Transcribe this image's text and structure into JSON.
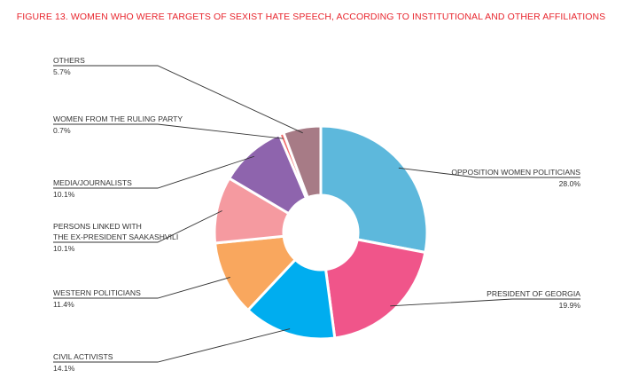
{
  "chart_data": {
    "type": "pie",
    "title": "FIGURE 13. WOMEN WHO WERE TARGETS OF SEXIST HATE SPEECH, ACCORDING TO INSTITUTIONAL AND OTHER AFFILIATIONS",
    "donut": true,
    "slices": [
      {
        "label": "OPPOSITION WOMEN POLITICIANS",
        "value": 28.0,
        "value_label": "28.0%",
        "color": "#5db8dc"
      },
      {
        "label": "PRESIDENT OF GEORGIA",
        "value": 19.9,
        "value_label": "19.9%",
        "color": "#f0558a"
      },
      {
        "label": "CIVIL ACTIVISTS",
        "value": 14.1,
        "value_label": "14.1%",
        "color": "#00adef"
      },
      {
        "label": "WESTERN POLITICIANS",
        "value": 11.4,
        "value_label": "11.4%",
        "color": "#f9a75e"
      },
      {
        "label_lines": [
          "PERSONS LINKED WITH",
          "THE EX-PRESIDENT SAAKASHVILI"
        ],
        "value": 10.1,
        "value_label": "10.1%",
        "color": "#f59aa0"
      },
      {
        "label": "MEDIA/JOURNALISTS",
        "value": 10.1,
        "value_label": "10.1%",
        "color": "#8e64ad"
      },
      {
        "label": "WOMEN FROM THE RULING PARTY",
        "value": 0.7,
        "value_label": "0.7%",
        "color": "#f26d6d"
      },
      {
        "label": "OTHERS",
        "value": 5.7,
        "value_label": "5.7%",
        "color": "#a77b86"
      }
    ]
  }
}
